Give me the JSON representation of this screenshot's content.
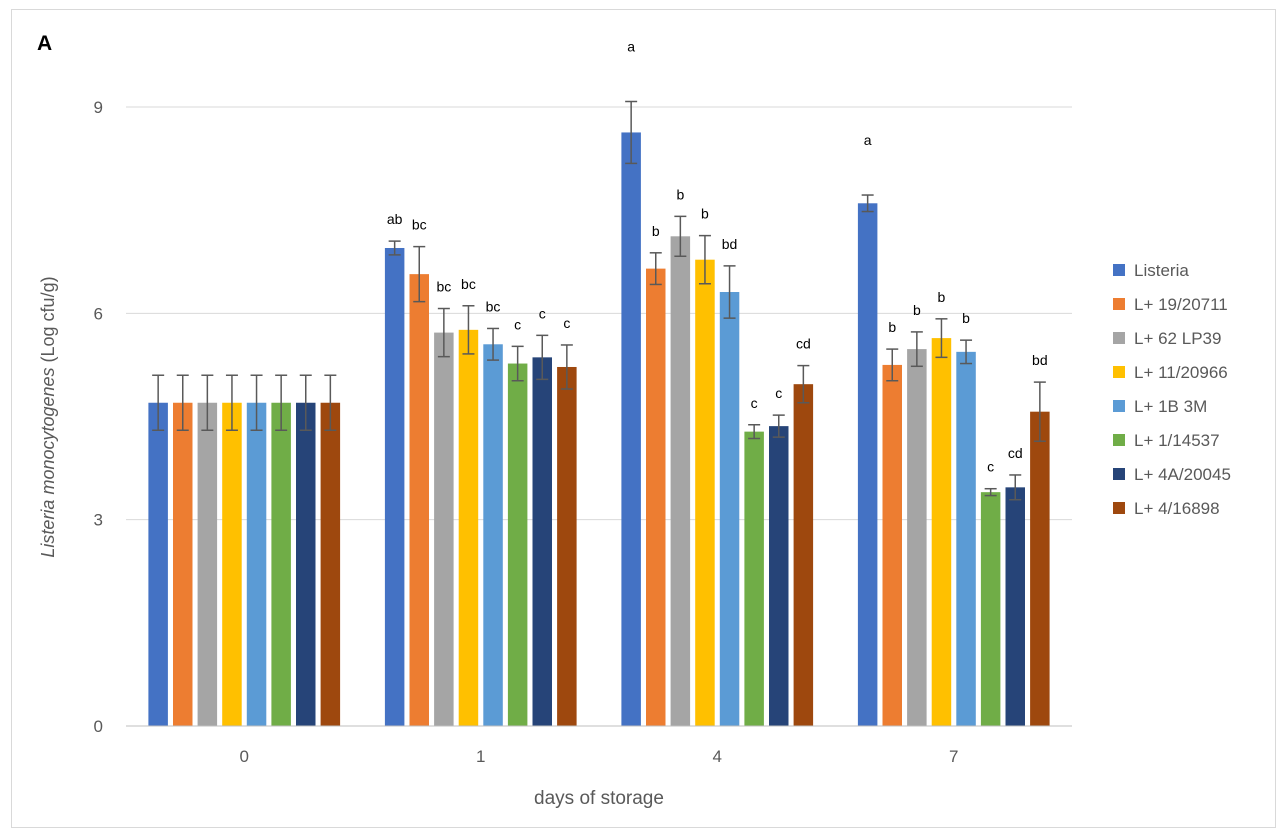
{
  "panel_label": "A",
  "chart_data": {
    "type": "bar",
    "categories": [
      "0",
      "1",
      "4",
      "7"
    ],
    "xlabel": "days of storage",
    "ylabel_italic": "Listeria monocytogenes",
    "ylabel_rest": " (Log cfu/g)",
    "ylim": [
      0,
      9
    ],
    "yticks": [
      0,
      3,
      6,
      9
    ],
    "grid": true,
    "legend_position": "right",
    "error_bars": true,
    "series": [
      {
        "name": "Listeria",
        "color": "#4472C4",
        "values": [
          4.7,
          6.95,
          8.63,
          7.6
        ],
        "errors": [
          0.4,
          0.1,
          0.45,
          0.12
        ],
        "labels": [
          "",
          "ab",
          "a",
          "a"
        ]
      },
      {
        "name": "L+ 19/20711",
        "color": "#ED7D31",
        "values": [
          4.7,
          6.57,
          6.65,
          5.25
        ],
        "errors": [
          0.4,
          0.4,
          0.23,
          0.23
        ],
        "labels": [
          "",
          "bc",
          "b",
          "b"
        ]
      },
      {
        "name": "L+ 62 LP39",
        "color": "#A5A5A5",
        "values": [
          4.7,
          5.72,
          7.12,
          5.48
        ],
        "errors": [
          0.4,
          0.35,
          0.29,
          0.25
        ],
        "labels": [
          "",
          "bc",
          "b",
          "b"
        ]
      },
      {
        "name": "L+ 11/20966",
        "color": "#FFC000",
        "values": [
          4.7,
          5.76,
          6.78,
          5.64
        ],
        "errors": [
          0.4,
          0.35,
          0.35,
          0.28
        ],
        "labels": [
          "",
          "bc",
          "b",
          "b"
        ]
      },
      {
        "name": "L+ 1B 3M",
        "color": "#5B9BD5",
        "values": [
          4.7,
          5.55,
          6.31,
          5.44
        ],
        "errors": [
          0.4,
          0.23,
          0.38,
          0.17
        ],
        "labels": [
          "",
          "bc",
          "bd",
          "b"
        ]
      },
      {
        "name": "L+ 1/14537",
        "color": "#70AD47",
        "values": [
          4.7,
          5.27,
          4.28,
          3.4
        ],
        "errors": [
          0.4,
          0.25,
          0.1,
          0.05
        ],
        "labels": [
          "",
          "c",
          "c",
          "c"
        ]
      },
      {
        "name": "L+ 4A/20045",
        "color": "#264478",
        "values": [
          4.7,
          5.36,
          4.36,
          3.47
        ],
        "errors": [
          0.4,
          0.32,
          0.16,
          0.18
        ],
        "labels": [
          "",
          "c",
          "c",
          "cd"
        ]
      },
      {
        "name": "L+ 4/16898",
        "color": "#9E480E",
        "values": [
          4.7,
          5.22,
          4.97,
          4.57
        ],
        "errors": [
          0.4,
          0.32,
          0.27,
          0.43
        ],
        "labels": [
          "",
          "c",
          "cd",
          "bd"
        ]
      }
    ]
  }
}
